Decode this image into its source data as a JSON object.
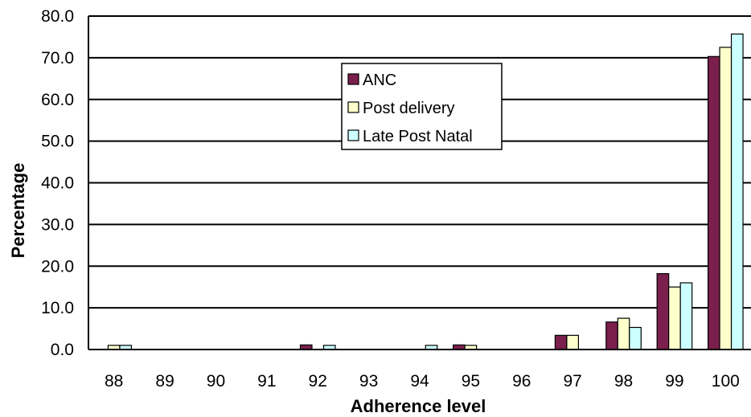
{
  "chart_data": {
    "type": "bar",
    "xlabel": "Adherence level",
    "ylabel": "Percentage",
    "categories": [
      "88",
      "89",
      "90",
      "91",
      "92",
      "93",
      "94",
      "95",
      "96",
      "97",
      "98",
      "99",
      "100"
    ],
    "ylim": [
      0,
      80
    ],
    "yticks": [
      "0.0",
      "10.0",
      "20.0",
      "30.0",
      "40.0",
      "50.0",
      "60.0",
      "70.0",
      "80.0"
    ],
    "grid": true,
    "legend_position": "top-center",
    "series": [
      {
        "name": "ANC",
        "color": "#7b1f4d",
        "values": [
          0,
          0,
          0,
          0,
          1.1,
          0,
          0,
          1.1,
          0,
          3.4,
          6.6,
          18.2,
          70.3
        ]
      },
      {
        "name": "Post delivery",
        "color": "#ffffcc",
        "values": [
          1.0,
          0,
          0,
          0,
          0,
          0,
          0,
          1.0,
          0,
          3.4,
          7.5,
          15.0,
          72.5
        ]
      },
      {
        "name": "Late Post Natal",
        "color": "#ccffff",
        "values": [
          1.0,
          0,
          0,
          0,
          1.0,
          0,
          1.0,
          0,
          0,
          0,
          5.3,
          16.0,
          75.7
        ]
      }
    ]
  }
}
